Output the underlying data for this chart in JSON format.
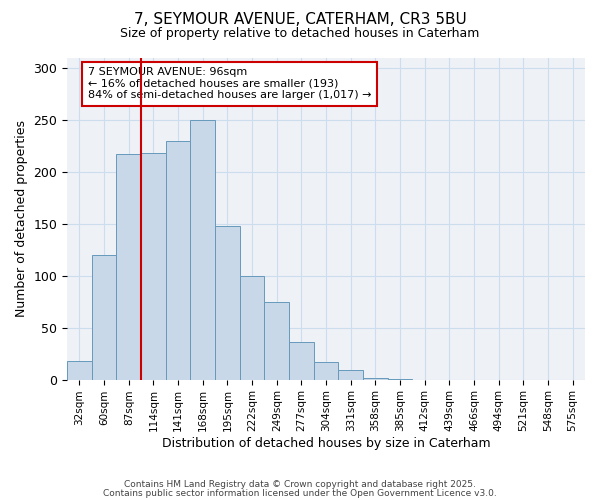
{
  "title": "7, SEYMOUR AVENUE, CATERHAM, CR3 5BU",
  "subtitle": "Size of property relative to detached houses in Caterham",
  "xlabel": "Distribution of detached houses by size in Caterham",
  "ylabel": "Number of detached properties",
  "bar_values": [
    18,
    120,
    217,
    218,
    230,
    250,
    148,
    100,
    75,
    36,
    17,
    9,
    2,
    1,
    0,
    0,
    0,
    0,
    0,
    0,
    0
  ],
  "bin_labels": [
    "32sqm",
    "60sqm",
    "87sqm",
    "114sqm",
    "141sqm",
    "168sqm",
    "195sqm",
    "222sqm",
    "249sqm",
    "277sqm",
    "304sqm",
    "331sqm",
    "358sqm",
    "385sqm",
    "412sqm",
    "439sqm",
    "466sqm",
    "494sqm",
    "521sqm",
    "548sqm",
    "575sqm"
  ],
  "bar_color": "#c8d8e8",
  "bar_edge_color": "#6699bb",
  "grid_color": "#ccddee",
  "background_color": "#eef2f7",
  "vline_x": 2.5,
  "vline_color": "#cc0000",
  "annotation_title": "7 SEYMOUR AVENUE: 96sqm",
  "annotation_line1": "← 16% of detached houses are smaller (193)",
  "annotation_line2": "84% of semi-detached houses are larger (1,017) →",
  "annotation_box_edge": "#cc0000",
  "ylim": [
    0,
    310
  ],
  "yticks": [
    0,
    50,
    100,
    150,
    200,
    250,
    300
  ],
  "footer1": "Contains HM Land Registry data © Crown copyright and database right 2025.",
  "footer2": "Contains public sector information licensed under the Open Government Licence v3.0."
}
